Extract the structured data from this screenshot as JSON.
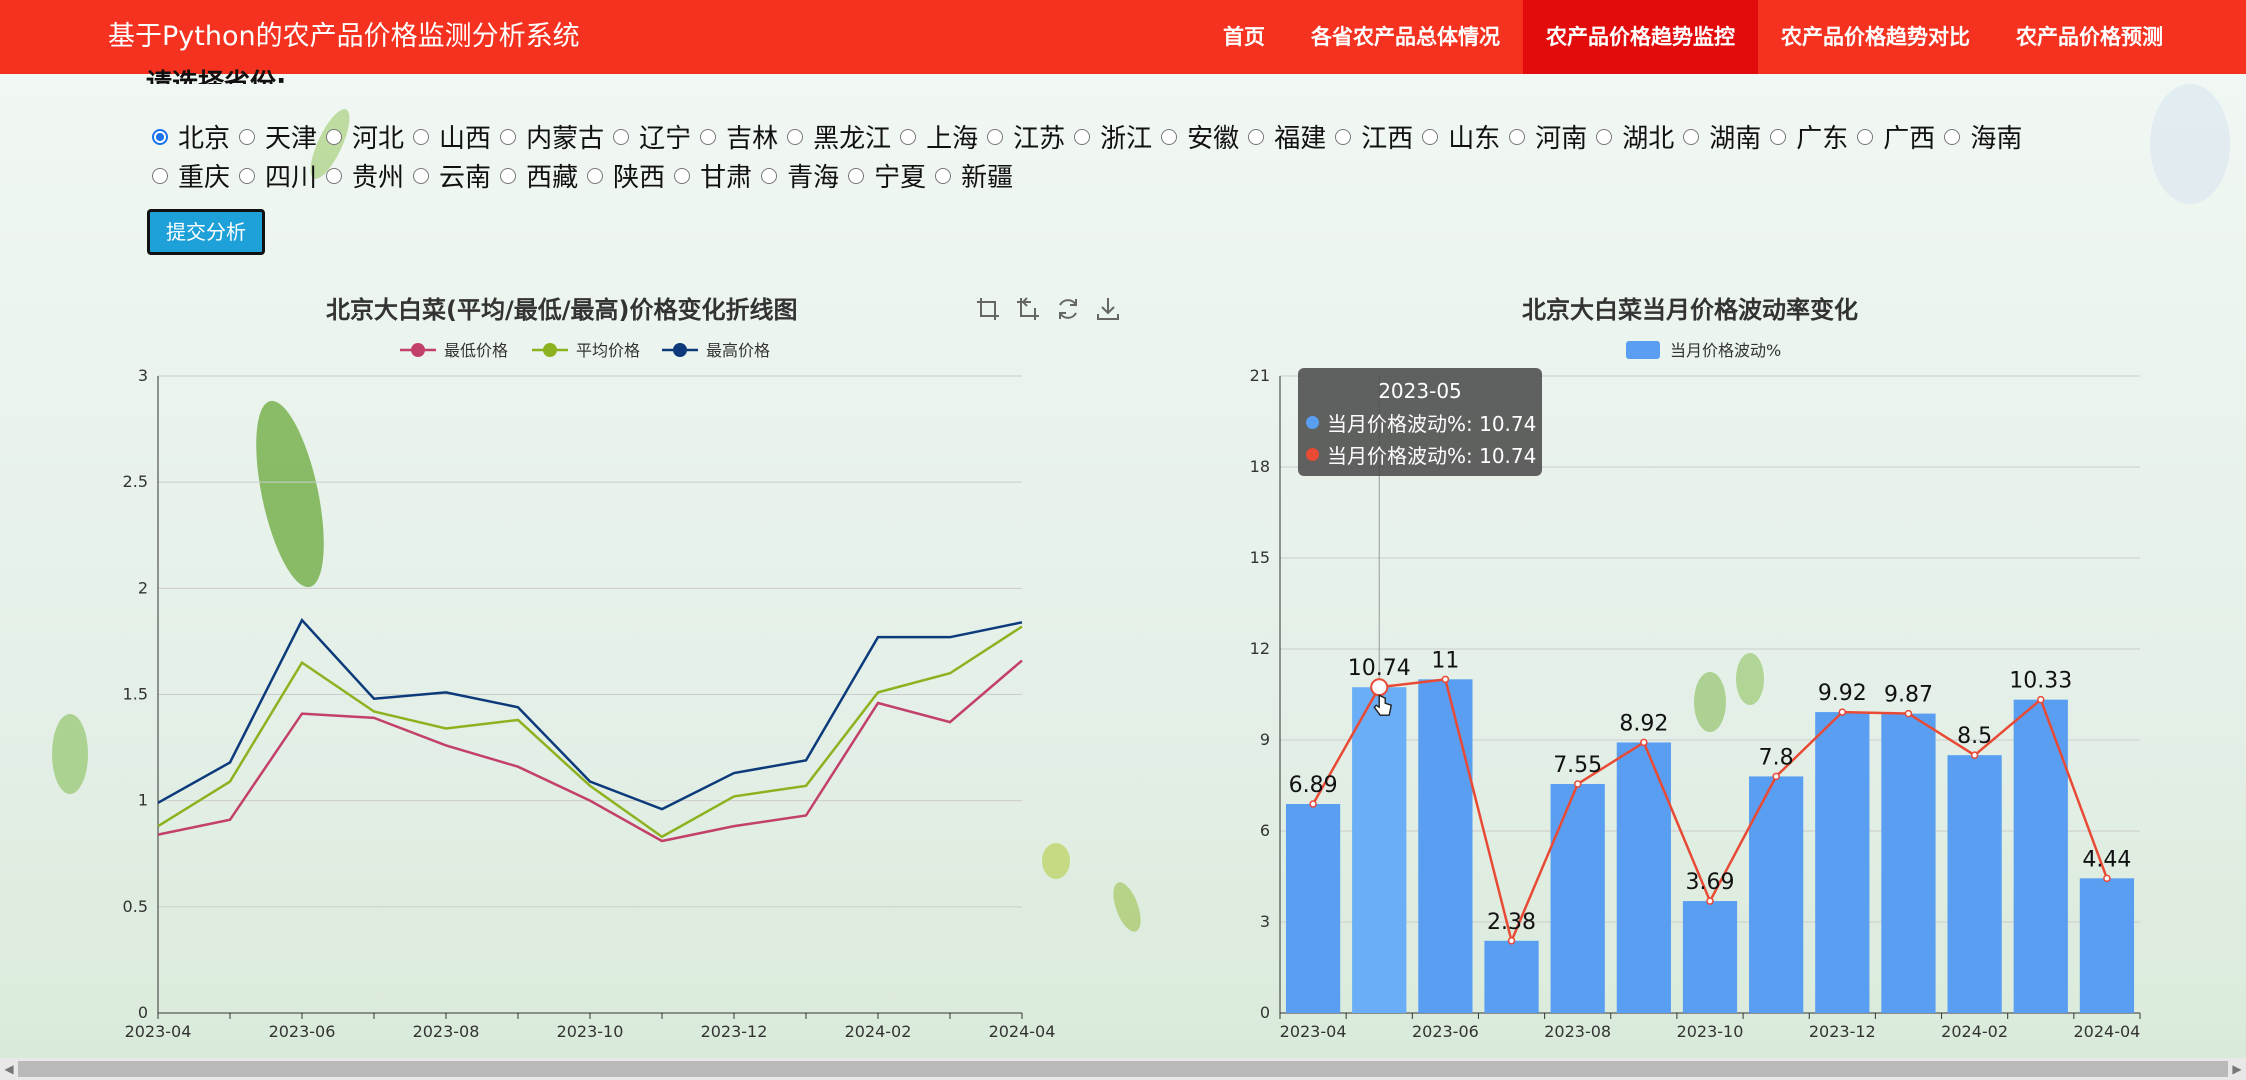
{
  "app": {
    "title": "基于Python的农产品价格监测分析系统",
    "nav": [
      {
        "label": "首页",
        "active": false
      },
      {
        "label": "各省农产品总体情况",
        "active": false
      },
      {
        "label": "农产品价格趋势监控",
        "active": true
      },
      {
        "label": "农产品价格趋势对比",
        "active": false
      },
      {
        "label": "农产品价格预测",
        "active": false
      }
    ]
  },
  "province_select": {
    "title": "请选择省份:",
    "selected": "北京",
    "row1": [
      "北京",
      "天津",
      "河北",
      "山西",
      "内蒙古",
      "辽宁",
      "吉林",
      "黑龙江",
      "上海",
      "江苏",
      "浙江",
      "安徽",
      "福建",
      "江西",
      "山东",
      "河南",
      "湖北",
      "湖南",
      "广东",
      "广西",
      "海南"
    ],
    "row2": [
      "重庆",
      "四川",
      "贵州",
      "云南",
      "西藏",
      "陕西",
      "甘肃",
      "青海",
      "宁夏",
      "新疆"
    ],
    "submit_label": "提交分析"
  },
  "colors": {
    "nav_bg": "#f5311f",
    "nav_active": "#e30c0c",
    "line_min": "#c2406a",
    "line_avg": "#8cb21f",
    "line_max": "#0c3a7a",
    "bar": "#5a9ef2",
    "bar_line": "#e84a35"
  },
  "icons": [
    "zoom-icon",
    "zoom-reset-icon",
    "restore-icon",
    "save-image-icon"
  ],
  "chart_data": [
    {
      "type": "line",
      "title": "北京大白菜(平均/最低/最高)价格变化折线图",
      "x": [
        "2023-04",
        "2023-05",
        "2023-06",
        "2023-07",
        "2023-08",
        "2023-09",
        "2023-10",
        "2023-11",
        "2023-12",
        "2024-01",
        "2024-02",
        "2024-03",
        "2024-04"
      ],
      "x_tick_labels": [
        "2023-04",
        "2023-06",
        "2023-08",
        "2023-10",
        "2023-12",
        "2024-02",
        "2024-04"
      ],
      "ylim": [
        0,
        3
      ],
      "y_ticks": [
        "0",
        "0.5",
        "1",
        "1.5",
        "2",
        "2.5",
        "3"
      ],
      "legend_position": "top-center",
      "grid": true,
      "series": [
        {
          "name": "最低价格",
          "values": [
            0.84,
            0.91,
            1.41,
            1.39,
            1.26,
            1.16,
            1.0,
            0.81,
            0.88,
            0.93,
            1.46,
            1.37,
            1.66
          ]
        },
        {
          "name": "平均价格",
          "values": [
            0.88,
            1.09,
            1.65,
            1.42,
            1.34,
            1.38,
            1.07,
            0.83,
            1.02,
            1.07,
            1.51,
            1.6,
            1.82
          ]
        },
        {
          "name": "最高价格",
          "values": [
            0.99,
            1.18,
            1.85,
            1.48,
            1.51,
            1.44,
            1.09,
            0.96,
            1.13,
            1.19,
            1.77,
            1.77,
            1.84
          ]
        }
      ]
    },
    {
      "type": "bar",
      "title": "北京大白菜当月价格波动率变化",
      "categories": [
        "2023-04",
        "2023-05",
        "2023-06",
        "2023-07",
        "2023-08",
        "2023-09",
        "2023-10",
        "2023-11",
        "2023-12",
        "2024-01",
        "2024-02",
        "2024-03",
        "2024-04"
      ],
      "x_tick_labels": [
        "2023-04",
        "2023-06",
        "2023-08",
        "2023-10",
        "2023-12",
        "2024-02",
        "2024-04"
      ],
      "ylim": [
        0,
        21
      ],
      "y_ticks": [
        "0",
        "3",
        "6",
        "9",
        "12",
        "15",
        "18",
        "21"
      ],
      "legend_position": "top-center",
      "grid": true,
      "series": [
        {
          "name": "当月价格波动%",
          "values": [
            6.89,
            10.74,
            11,
            2.38,
            7.55,
            8.92,
            3.69,
            7.8,
            9.92,
            9.87,
            8.5,
            10.33,
            4.44
          ]
        }
      ],
      "data_labels": [
        "6.89",
        "10.74",
        "11",
        "2.38",
        "7.55",
        "8.92",
        "3.69",
        "7.8",
        "9.92",
        "9.87",
        "8.5",
        "10.33",
        "4.44"
      ],
      "tooltip": {
        "header": "2023-05",
        "rows": [
          "当月价格波动%: 10.74",
          "当月价格波动%: 10.74"
        ]
      }
    }
  ]
}
